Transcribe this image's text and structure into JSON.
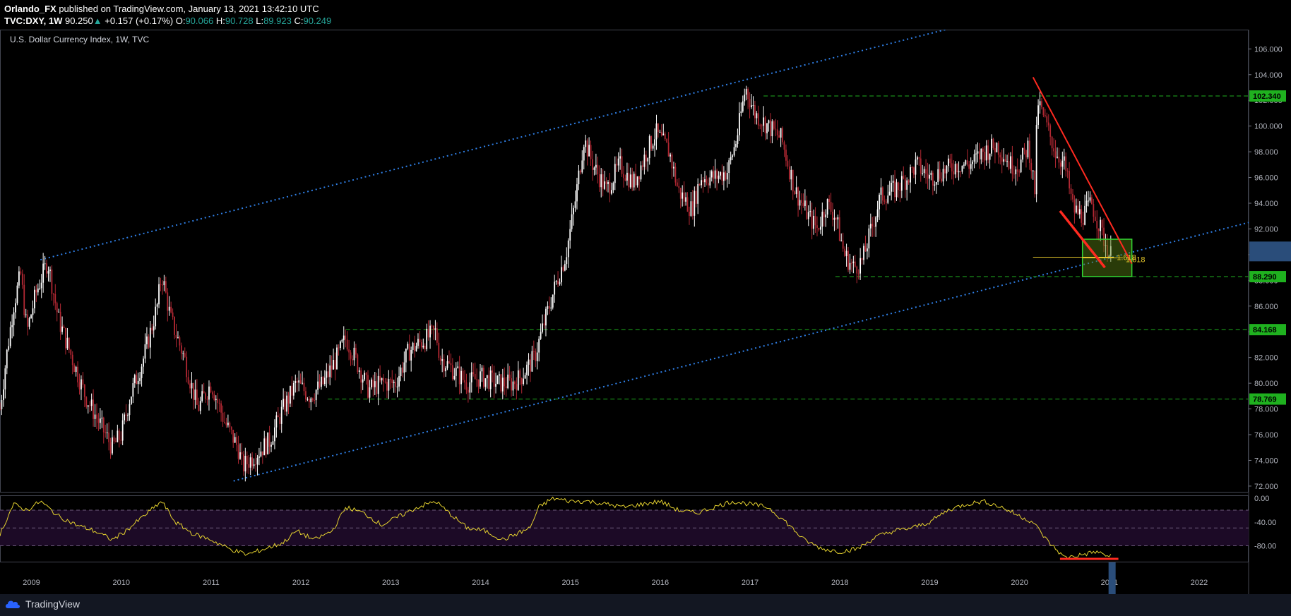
{
  "header": {
    "author": "Orlando_FX",
    "published": "published on TradingView.com, January 13, 2021 13:42:10 UTC",
    "symbol": "TVC:DXY, 1W",
    "last": "90.250",
    "change": "+0.157 (+0.17%)",
    "o_label": "O:",
    "o_value": "90.066",
    "h_label": "H:",
    "h_value": "90.728",
    "l_label": "L:",
    "l_value": "89.923",
    "c_label": "C:",
    "c_value": "90.249"
  },
  "footer": {
    "brand": "TradingView",
    "icon": "tradingview-cloud-icon"
  },
  "colors": {
    "up_candle": "#ffffff",
    "down_candle": "#b22833",
    "channel": "#2f7fe6",
    "support": "#1fb11f",
    "trendline": "#ff2a20",
    "fib": "#e5c72a",
    "rsi_line": "#e5d22f",
    "rsi_band": "#1c0a26",
    "current_price": "#2a4d7a"
  },
  "chart_data": [
    {
      "type": "line",
      "title": "U.S. Dollar Currency Index, 1W, TVC",
      "x_ticks": [
        "2009",
        "2010",
        "2011",
        "2012",
        "2013",
        "2014",
        "2015",
        "2016",
        "2017",
        "2018",
        "2019",
        "2020",
        "2021",
        "2022"
      ],
      "y_ticks": [
        "106.000",
        "104.000",
        "102.000",
        "100.000",
        "98.000",
        "96.000",
        "94.000",
        "92.000",
        "90.000",
        "88.000",
        "86.000",
        "84.000",
        "82.000",
        "80.000",
        "78.000",
        "76.000",
        "74.000",
        "72.000"
      ],
      "ylim": [
        71.5,
        107.5
      ],
      "xlim": [
        2008.65,
        2022.55
      ],
      "price_path": [
        [
          2008.65,
          78
        ],
        [
          2008.72,
          82
        ],
        [
          2008.8,
          86
        ],
        [
          2008.88,
          88.5
        ],
        [
          2008.95,
          84
        ],
        [
          2009.05,
          87
        ],
        [
          2009.18,
          89.5
        ],
        [
          2009.3,
          85
        ],
        [
          2009.45,
          82
        ],
        [
          2009.6,
          79
        ],
        [
          2009.75,
          77
        ],
        [
          2009.9,
          75
        ],
        [
          2010.0,
          76
        ],
        [
          2010.1,
          79
        ],
        [
          2010.25,
          82
        ],
        [
          2010.4,
          86
        ],
        [
          2010.45,
          88.5
        ],
        [
          2010.55,
          85
        ],
        [
          2010.7,
          82
        ],
        [
          2010.85,
          78
        ],
        [
          2011.0,
          80
        ],
        [
          2011.15,
          77
        ],
        [
          2011.3,
          75
        ],
        [
          2011.35,
          73.5
        ],
        [
          2011.5,
          74.5
        ],
        [
          2011.65,
          75.5
        ],
        [
          2011.8,
          78
        ],
        [
          2011.95,
          80
        ],
        [
          2012.1,
          79
        ],
        [
          2012.25,
          80
        ],
        [
          2012.4,
          82
        ],
        [
          2012.5,
          83.5
        ],
        [
          2012.6,
          82
        ],
        [
          2012.75,
          79.5
        ],
        [
          2012.9,
          80
        ],
        [
          2013.05,
          80
        ],
        [
          2013.2,
          82.5
        ],
        [
          2013.4,
          83.5
        ],
        [
          2013.5,
          84
        ],
        [
          2013.55,
          82
        ],
        [
          2013.7,
          81
        ],
        [
          2013.85,
          80
        ],
        [
          2014.0,
          80.5
        ],
        [
          2014.2,
          80
        ],
        [
          2014.35,
          80
        ],
        [
          2014.45,
          80.5
        ],
        [
          2014.6,
          82
        ],
        [
          2014.7,
          84.5
        ],
        [
          2014.85,
          88
        ],
        [
          2014.95,
          90
        ],
        [
          2015.05,
          94
        ],
        [
          2015.15,
          99
        ],
        [
          2015.25,
          97
        ],
        [
          2015.4,
          95
        ],
        [
          2015.55,
          97
        ],
        [
          2015.7,
          95.5
        ],
        [
          2015.85,
          98
        ],
        [
          2015.95,
          99.5
        ],
        [
          2016.1,
          98
        ],
        [
          2016.2,
          95
        ],
        [
          2016.35,
          93.5
        ],
        [
          2016.45,
          96
        ],
        [
          2016.6,
          96
        ],
        [
          2016.75,
          96.5
        ],
        [
          2016.85,
          99
        ],
        [
          2016.95,
          103
        ],
        [
          2017.05,
          101
        ],
        [
          2017.2,
          100
        ],
        [
          2017.35,
          99
        ],
        [
          2017.5,
          95
        ],
        [
          2017.65,
          93
        ],
        [
          2017.75,
          92
        ],
        [
          2017.85,
          94
        ],
        [
          2017.95,
          93
        ],
        [
          2018.05,
          90
        ],
        [
          2018.15,
          89
        ],
        [
          2018.25,
          89.5
        ],
        [
          2018.35,
          92
        ],
        [
          2018.45,
          94.5
        ],
        [
          2018.6,
          95
        ],
        [
          2018.75,
          96
        ],
        [
          2018.85,
          97
        ],
        [
          2019.0,
          96
        ],
        [
          2019.15,
          96.5
        ],
        [
          2019.3,
          97
        ],
        [
          2019.45,
          97
        ],
        [
          2019.6,
          98
        ],
        [
          2019.75,
          98.5
        ],
        [
          2019.9,
          97
        ],
        [
          2020.0,
          97
        ],
        [
          2020.1,
          98.5
        ],
        [
          2020.17,
          95
        ],
        [
          2020.2,
          102
        ],
        [
          2020.3,
          100
        ],
        [
          2020.4,
          98
        ],
        [
          2020.5,
          97
        ],
        [
          2020.6,
          93.5
        ],
        [
          2020.7,
          93
        ],
        [
          2020.8,
          94
        ],
        [
          2020.9,
          92
        ],
        [
          2021.0,
          90
        ]
      ],
      "channel_upper": [
        [
          2009.1,
          89.6
        ],
        [
          2016.95,
          103.6
        ],
        [
          2022.6,
          113.5
        ]
      ],
      "channel_lower": [
        [
          2011.25,
          72.4
        ],
        [
          2022.55,
          92.5
        ]
      ],
      "support_levels": [
        {
          "value": 102.34,
          "label": "102.340",
          "from": 2017.15
        },
        {
          "value": 88.29,
          "label": "88.290",
          "from": 2017.95
        },
        {
          "value": 84.168,
          "label": "84.168",
          "from": 2012.5
        },
        {
          "value": 78.769,
          "label": "78.769",
          "from": 2012.3
        }
      ],
      "trendlines": [
        {
          "from": [
            2020.15,
            103.8
          ],
          "to": [
            2021.25,
            89.3
          ],
          "width": 2
        },
        {
          "from": [
            2020.45,
            93.4
          ],
          "to": [
            2020.95,
            89.0
          ],
          "width": 3.5
        }
      ],
      "fib": [
        {
          "x1": 2020.15,
          "x2": 2021.05,
          "y": 89.8,
          "label": "1.618"
        },
        {
          "x1": 2020.7,
          "x2": 2021.15,
          "y": 89.75,
          "label": "1.618"
        }
      ],
      "box": {
        "x1": 2020.7,
        "x2": 2021.25,
        "y1": 91.2,
        "y2": 88.3
      },
      "current_price": {
        "value": 90.25
      }
    },
    {
      "type": "line",
      "title": "",
      "y_ticks": [
        "0.00",
        "-40.00",
        "-80.00"
      ],
      "ylim": [
        -108,
        5
      ],
      "rsi_levels": [
        -20,
        -50,
        -80
      ],
      "rsi_path": [
        [
          2008.65,
          -60
        ],
        [
          2008.8,
          -10
        ],
        [
          2008.95,
          -20
        ],
        [
          2009.1,
          -5
        ],
        [
          2009.3,
          -30
        ],
        [
          2009.5,
          -45
        ],
        [
          2009.7,
          -55
        ],
        [
          2009.9,
          -70
        ],
        [
          2010.05,
          -55
        ],
        [
          2010.25,
          -30
        ],
        [
          2010.45,
          -5
        ],
        [
          2010.6,
          -40
        ],
        [
          2010.8,
          -60
        ],
        [
          2011.0,
          -70
        ],
        [
          2011.2,
          -85
        ],
        [
          2011.4,
          -95
        ],
        [
          2011.6,
          -85
        ],
        [
          2011.8,
          -75
        ],
        [
          2011.95,
          -55
        ],
        [
          2012.15,
          -70
        ],
        [
          2012.35,
          -55
        ],
        [
          2012.5,
          -15
        ],
        [
          2012.7,
          -25
        ],
        [
          2012.9,
          -45
        ],
        [
          2013.1,
          -30
        ],
        [
          2013.3,
          -15
        ],
        [
          2013.5,
          -5
        ],
        [
          2013.65,
          -25
        ],
        [
          2013.85,
          -50
        ],
        [
          2014.05,
          -55
        ],
        [
          2014.25,
          -70
        ],
        [
          2014.4,
          -60
        ],
        [
          2014.55,
          -50
        ],
        [
          2014.65,
          -15
        ],
        [
          2014.8,
          0
        ],
        [
          2015.0,
          -5
        ],
        [
          2015.2,
          -5
        ],
        [
          2015.4,
          -10
        ],
        [
          2015.6,
          -15
        ],
        [
          2015.8,
          -10
        ],
        [
          2016.0,
          -5
        ],
        [
          2016.2,
          -20
        ],
        [
          2016.4,
          -25
        ],
        [
          2016.6,
          -15
        ],
        [
          2016.8,
          -5
        ],
        [
          2017.0,
          -10
        ],
        [
          2017.2,
          -15
        ],
        [
          2017.4,
          -40
        ],
        [
          2017.6,
          -70
        ],
        [
          2017.8,
          -85
        ],
        [
          2018.0,
          -90
        ],
        [
          2018.2,
          -85
        ],
        [
          2018.4,
          -65
        ],
        [
          2018.6,
          -55
        ],
        [
          2018.8,
          -50
        ],
        [
          2019.0,
          -40
        ],
        [
          2019.2,
          -20
        ],
        [
          2019.4,
          -10
        ],
        [
          2019.6,
          -5
        ],
        [
          2019.8,
          -15
        ],
        [
          2020.0,
          -30
        ],
        [
          2020.15,
          -40
        ],
        [
          2020.3,
          -70
        ],
        [
          2020.5,
          -100
        ],
        [
          2020.7,
          -95
        ],
        [
          2020.85,
          -90
        ],
        [
          2021.0,
          -98
        ]
      ],
      "divergence_line": {
        "from": [
          2020.45,
          -102
        ],
        "to": [
          2021.1,
          -102
        ]
      }
    }
  ]
}
